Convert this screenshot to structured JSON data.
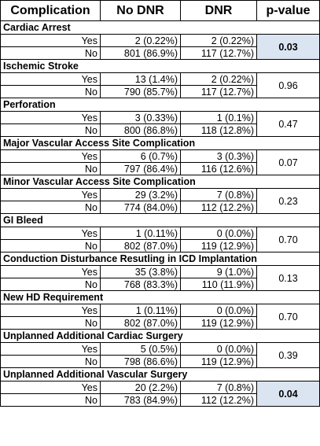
{
  "header": {
    "complication": "Complication",
    "no_dnr": "No DNR",
    "dnr": "DNR",
    "p_value": "p-value"
  },
  "colors": {
    "significant_fill": "#dbe5f1"
  },
  "groups": [
    {
      "title": "Cardiac Arrest",
      "yes": {
        "label": "Yes",
        "no_dnr": "2 (0.22%)",
        "dnr": "2 (0.22%)"
      },
      "no": {
        "label": "No",
        "no_dnr": "801 (86.9%)",
        "dnr": "117 (12.7%)"
      },
      "p": "0.03",
      "significant": true
    },
    {
      "title": "Ischemic Stroke",
      "yes": {
        "label": "Yes",
        "no_dnr": "13 (1.4%)",
        "dnr": "2 (0.22%)"
      },
      "no": {
        "label": "No",
        "no_dnr": "790 (85.7%)",
        "dnr": "117 (12.7%)"
      },
      "p": "0.96",
      "significant": false
    },
    {
      "title": "Perforation",
      "yes": {
        "label": "Yes",
        "no_dnr": "3 (0.33%)",
        "dnr": "1 (0.1%)"
      },
      "no": {
        "label": "No",
        "no_dnr": "800 (86.8%)",
        "dnr": "118 (12.8%)"
      },
      "p": "0.47",
      "significant": false
    },
    {
      "title": "Major Vascular Access Site Complication",
      "yes": {
        "label": "Yes",
        "no_dnr": "6 (0.7%)",
        "dnr": "3 (0.3%)"
      },
      "no": {
        "label": "No",
        "no_dnr": "797 (86.4%)",
        "dnr": "116 (12.6%)"
      },
      "p": "0.07",
      "significant": false
    },
    {
      "title": "Minor Vascular Access Site Complication",
      "yes": {
        "label": "Yes",
        "no_dnr": "29 (3.2%)",
        "dnr": "7 (0.8%)"
      },
      "no": {
        "label": "No",
        "no_dnr": "774 (84.0%)",
        "dnr": "112 (12.2%)"
      },
      "p": "0.23",
      "significant": false
    },
    {
      "title": "GI Bleed",
      "yes": {
        "label": "Yes",
        "no_dnr": "1 (0.11%)",
        "dnr": "0 (0.0%)"
      },
      "no": {
        "label": "No",
        "no_dnr": "802 (87.0%)",
        "dnr": "119 (12.9%)"
      },
      "p": "0.70",
      "significant": false
    },
    {
      "title": "Conduction Disturbance Resutling in ICD Implantation",
      "yes": {
        "label": "Yes",
        "no_dnr": "35 (3.8%)",
        "dnr": "9 (1.0%)"
      },
      "no": {
        "label": "No",
        "no_dnr": "768 (83.3%)",
        "dnr": "110 (11.9%)"
      },
      "p": "0.13",
      "significant": false
    },
    {
      "title": "New HD Requirement",
      "yes": {
        "label": "Yes",
        "no_dnr": "1 (0.11%)",
        "dnr": "0 (0.0%)"
      },
      "no": {
        "label": "No",
        "no_dnr": "802 (87.0%)",
        "dnr": "119 (12.9%)"
      },
      "p": "0.70",
      "significant": false
    },
    {
      "title": "Unplanned Additional Cardiac Surgery",
      "yes": {
        "label": "Yes",
        "no_dnr": "5 (0.5%)",
        "dnr": "0 (0.0%)"
      },
      "no": {
        "label": "No",
        "no_dnr": "798 (86.6%)",
        "dnr": "119 (12.9%)"
      },
      "p": "0.39",
      "significant": false
    },
    {
      "title": "Unplanned Additional Vascular Surgery",
      "yes": {
        "label": "Yes",
        "no_dnr": "20 (2.2%)",
        "dnr": "7 (0.8%)"
      },
      "no": {
        "label": "No",
        "no_dnr": "783 (84.9%)",
        "dnr": "112 (12.2%)"
      },
      "p": "0.04",
      "significant": true
    }
  ]
}
